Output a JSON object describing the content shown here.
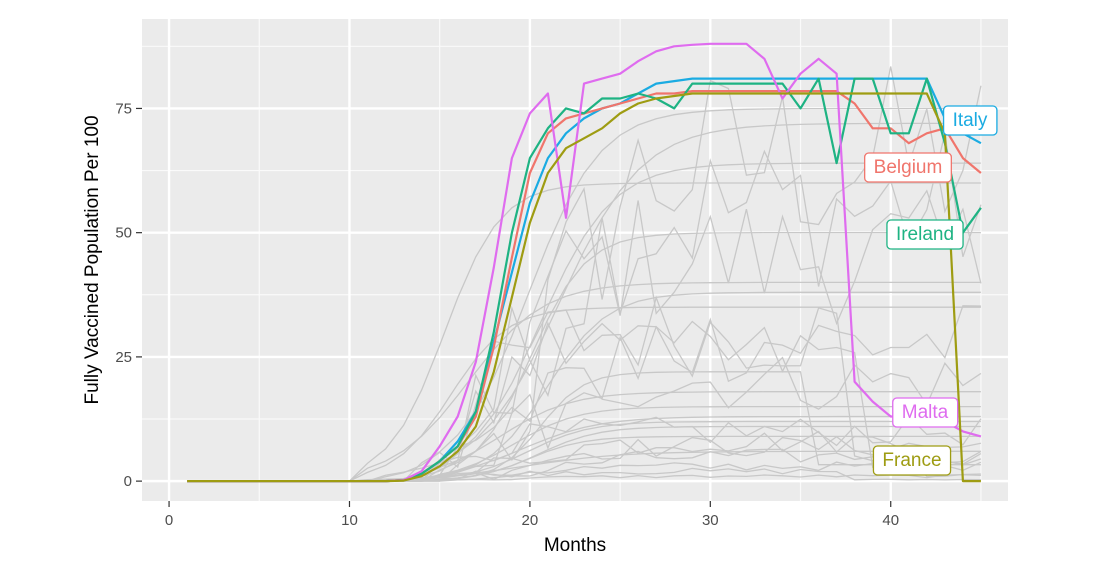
{
  "chart_data": {
    "type": "line",
    "xlabel": "Months",
    "ylabel": "Fully Vaccined Population Per 100",
    "xlim": [
      -1.5,
      46.5
    ],
    "ylim": [
      -4,
      93
    ],
    "x_ticks": [
      0,
      10,
      20,
      30,
      40
    ],
    "y_ticks": [
      0,
      25,
      50,
      75
    ],
    "grid": true,
    "panel_background": "#ebebeb",
    "background_series_color": "#c8c8c8",
    "highlighted_series": [
      {
        "name": "Italy",
        "color": "#1aabe2",
        "x": [
          1,
          2,
          3,
          4,
          5,
          6,
          7,
          8,
          9,
          10,
          11,
          12,
          13,
          14,
          15,
          16,
          17,
          18,
          19,
          20,
          21,
          22,
          23,
          24,
          25,
          26,
          27,
          28,
          29,
          30,
          31,
          32,
          33,
          34,
          35,
          36,
          37,
          38,
          39,
          40,
          41,
          42,
          43,
          44,
          45
        ],
        "y": [
          0,
          0,
          0,
          0,
          0,
          0,
          0,
          0,
          0,
          0,
          0,
          0,
          0.2,
          1.5,
          4,
          8,
          14,
          28,
          42,
          56,
          65,
          70,
          73,
          75,
          76,
          78,
          80,
          80.5,
          81,
          81,
          81,
          81,
          81,
          81,
          81,
          81,
          81,
          81,
          81,
          81,
          81,
          81,
          73,
          70,
          68
        ]
      },
      {
        "name": "Belgium",
        "color": "#f0756c",
        "x": [
          1,
          2,
          3,
          4,
          5,
          6,
          7,
          8,
          9,
          10,
          11,
          12,
          13,
          14,
          15,
          16,
          17,
          18,
          19,
          20,
          21,
          22,
          23,
          24,
          25,
          26,
          27,
          28,
          29,
          30,
          31,
          32,
          33,
          34,
          35,
          36,
          37,
          38,
          39,
          40,
          41,
          42,
          43,
          44,
          45
        ],
        "y": [
          0,
          0,
          0,
          0,
          0,
          0,
          0,
          0,
          0,
          0,
          0,
          0,
          0.2,
          1.5,
          4,
          7,
          13,
          27,
          45,
          62,
          70,
          73,
          74,
          75,
          76,
          77,
          78,
          78,
          78.5,
          78.5,
          78.5,
          78.5,
          78.5,
          78.5,
          78.5,
          78.5,
          78.5,
          76,
          71,
          71,
          68,
          70,
          71,
          65,
          62
        ]
      },
      {
        "name": "Ireland",
        "color": "#1eb383",
        "x": [
          1,
          2,
          3,
          4,
          5,
          6,
          7,
          8,
          9,
          10,
          11,
          12,
          13,
          14,
          15,
          16,
          17,
          18,
          19,
          20,
          21,
          22,
          23,
          24,
          25,
          26,
          27,
          28,
          29,
          30,
          31,
          32,
          33,
          34,
          35,
          36,
          37,
          38,
          39,
          40,
          41,
          42,
          43,
          44,
          45
        ],
        "y": [
          0,
          0,
          0,
          0,
          0,
          0,
          0,
          0,
          0,
          0,
          0,
          0,
          0.2,
          1.5,
          4,
          7,
          14,
          30,
          50,
          65,
          71,
          75,
          74,
          77,
          77,
          78,
          77,
          75,
          80,
          80,
          80,
          80,
          80,
          80,
          75,
          81,
          64,
          81,
          81,
          70,
          70,
          81,
          68,
          50,
          55
        ]
      },
      {
        "name": "Malta",
        "color": "#df6cef",
        "x": [
          1,
          2,
          3,
          4,
          5,
          6,
          7,
          8,
          9,
          10,
          11,
          12,
          13,
          14,
          15,
          16,
          17,
          18,
          19,
          20,
          21,
          22,
          23,
          24,
          25,
          26,
          27,
          28,
          29,
          30,
          31,
          32,
          33,
          34,
          35,
          36,
          37,
          38,
          39,
          40,
          41,
          42,
          43,
          44,
          45
        ],
        "y": [
          0,
          0,
          0,
          0,
          0,
          0,
          0,
          0,
          0,
          0,
          0,
          0,
          0.2,
          2,
          7,
          13,
          24,
          43,
          65,
          74,
          78,
          53,
          80,
          81,
          82,
          84.5,
          86.5,
          87.5,
          87.8,
          88,
          88,
          88,
          85,
          77,
          82,
          85,
          82,
          20,
          16,
          13,
          13,
          12,
          12,
          10,
          9
        ]
      },
      {
        "name": "France",
        "color": "#9e9c12",
        "x": [
          1,
          2,
          3,
          4,
          5,
          6,
          7,
          8,
          9,
          10,
          11,
          12,
          13,
          14,
          15,
          16,
          17,
          18,
          19,
          20,
          21,
          22,
          23,
          24,
          25,
          26,
          27,
          28,
          29,
          30,
          31,
          32,
          33,
          34,
          35,
          36,
          37,
          38,
          39,
          40,
          41,
          42,
          43,
          44,
          45
        ],
        "y": [
          0,
          0,
          0,
          0,
          0,
          0,
          0,
          0,
          0,
          0,
          0,
          0,
          0.1,
          1,
          3,
          6,
          11,
          22,
          37,
          52,
          62,
          67,
          69,
          71,
          74,
          76,
          77,
          77.5,
          78,
          78,
          78,
          78,
          78,
          78,
          78,
          78,
          78,
          78,
          78,
          78,
          78,
          78,
          70,
          0,
          0
        ]
      }
    ]
  }
}
